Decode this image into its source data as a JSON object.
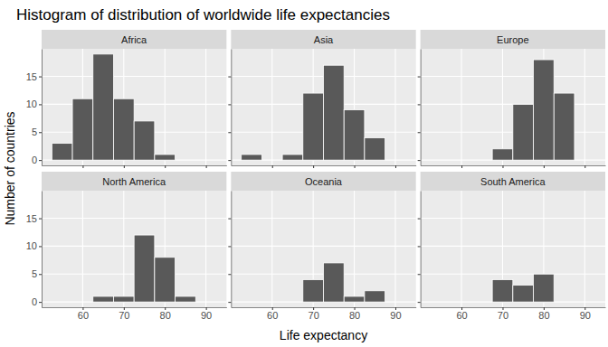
{
  "chart_data": {
    "type": "histogram",
    "title": "Histogram of distribution of worldwide life expectancies",
    "x_label": "Life expectancy",
    "y_label": "Number of countries",
    "bins": [
      52.5,
      57.5,
      62.5,
      67.5,
      72.5,
      77.5,
      82.5,
      87.5
    ],
    "xlim": [
      50,
      95
    ],
    "ylim": [
      -0.95,
      19.95
    ],
    "xticks": [
      60,
      70,
      80,
      90
    ],
    "yticks": [
      0,
      5,
      10,
      15
    ],
    "grid": true,
    "color": "#595959",
    "series": [
      {
        "name": "Africa",
        "values": [
          3,
          11,
          19,
          11,
          7,
          1,
          0
        ]
      },
      {
        "name": "Asia",
        "values": [
          1,
          0,
          1,
          12,
          17,
          9,
          4
        ]
      },
      {
        "name": "Europe",
        "values": [
          0,
          0,
          0,
          2,
          10,
          18,
          12
        ]
      },
      {
        "name": "North America",
        "values": [
          0,
          0,
          1,
          1,
          12,
          8,
          1
        ]
      },
      {
        "name": "Oceania",
        "values": [
          0,
          0,
          0,
          4,
          7,
          1,
          2
        ]
      },
      {
        "name": "South America",
        "values": [
          0,
          0,
          0,
          4,
          3,
          5,
          0
        ]
      }
    ]
  }
}
